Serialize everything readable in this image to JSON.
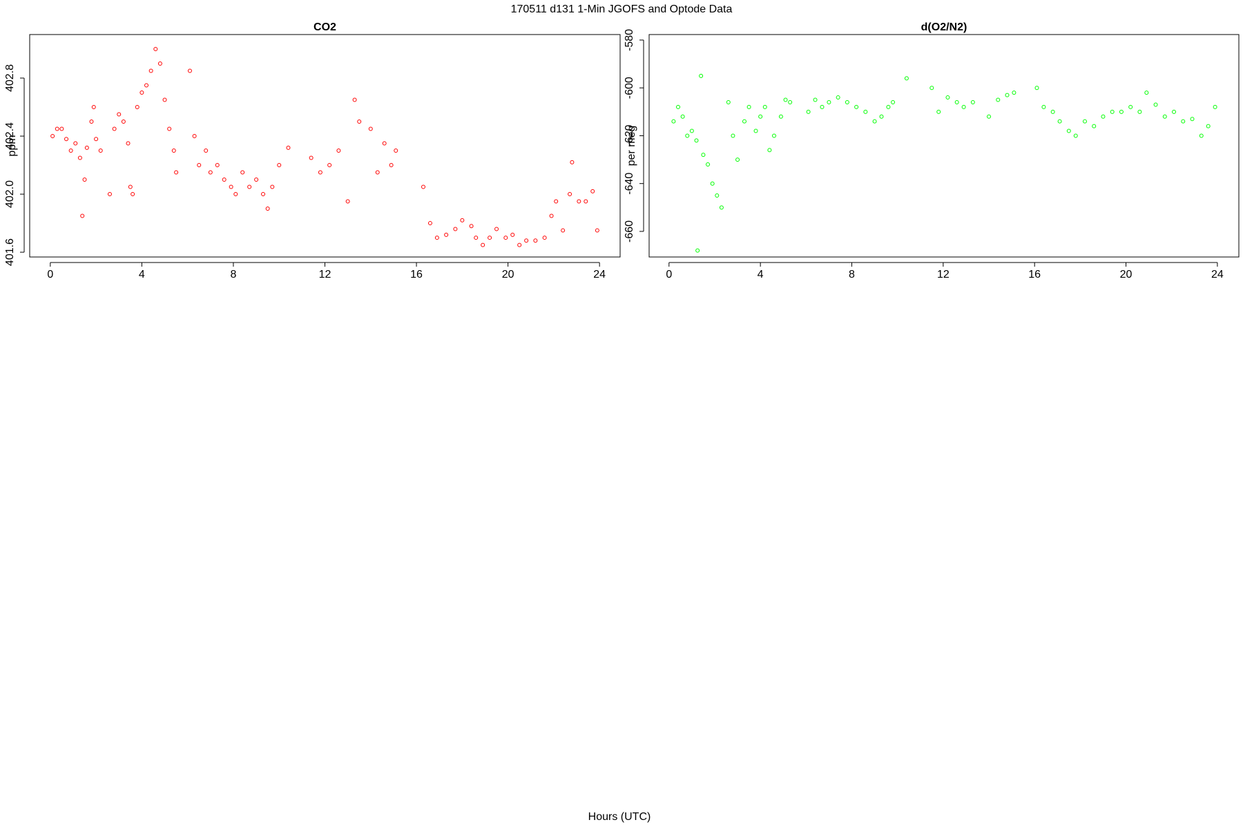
{
  "title": "170511   d131   1-Min  JGOFS and Optode Data",
  "x_label": "Hours (UTC)",
  "chart_data": [
    {
      "type": "scatter",
      "title": "CO2",
      "y_label": "ppm",
      "color": "#ff0000",
      "xlim": [
        -0.9,
        24.9
      ],
      "xticks": [
        0,
        4,
        8,
        12,
        16,
        20,
        24
      ],
      "ylim": [
        401.567,
        403.1
      ],
      "yticks": [
        401.6,
        {
          "value": 402,
          "label": "402.0"
        },
        402.4,
        402.8
      ],
      "x": [
        0.1,
        0.3,
        0.5,
        0.7,
        0.9,
        1.1,
        1.3,
        1.4,
        1.5,
        1.6,
        1.8,
        1.9,
        2.0,
        2.2,
        2.6,
        2.8,
        3.0,
        3.2,
        3.4,
        3.5,
        3.6,
        3.8,
        4.0,
        4.2,
        4.4,
        4.6,
        4.8,
        5.0,
        5.2,
        5.4,
        5.5,
        6.1,
        6.3,
        6.5,
        6.8,
        7.0,
        7.3,
        7.6,
        7.9,
        8.1,
        8.4,
        8.7,
        9.0,
        9.3,
        9.5,
        9.7,
        10.0,
        10.4,
        11.4,
        11.8,
        12.2,
        12.6,
        13.0,
        13.3,
        13.5,
        14.0,
        14.3,
        14.6,
        14.9,
        15.1,
        16.3,
        16.6,
        16.9,
        17.3,
        17.7,
        18.0,
        18.4,
        18.6,
        18.9,
        19.2,
        19.5,
        19.9,
        20.2,
        20.5,
        20.8,
        21.2,
        21.6,
        21.9,
        22.1,
        22.4,
        22.7,
        22.8,
        23.1,
        23.4,
        23.7,
        23.9
      ],
      "values": [
        402.4,
        402.45,
        402.45,
        402.38,
        402.3,
        402.35,
        402.25,
        401.85,
        402.1,
        402.32,
        402.5,
        402.6,
        402.38,
        402.3,
        402.0,
        402.45,
        402.55,
        402.5,
        402.35,
        402.05,
        402.0,
        402.6,
        402.7,
        402.75,
        402.85,
        403.0,
        402.9,
        402.65,
        402.45,
        402.3,
        402.15,
        402.85,
        402.4,
        402.2,
        402.3,
        402.15,
        402.2,
        402.1,
        402.05,
        402.0,
        402.15,
        402.05,
        402.1,
        402.0,
        401.9,
        402.05,
        402.2,
        402.32,
        402.25,
        402.15,
        402.2,
        402.3,
        401.95,
        402.65,
        402.5,
        402.45,
        402.15,
        402.35,
        402.2,
        402.3,
        402.05,
        401.8,
        401.7,
        401.72,
        401.76,
        401.82,
        401.78,
        401.7,
        401.65,
        401.7,
        401.76,
        401.7,
        401.72,
        401.65,
        401.68,
        401.68,
        401.7,
        401.85,
        401.95,
        401.75,
        402.0,
        402.22,
        401.95,
        401.95,
        402.02,
        401.75
      ]
    },
    {
      "type": "scatter",
      "title": "d(O2/N2)",
      "y_label": "per meg",
      "color": "#00ff00",
      "xlim": [
        -0.87,
        24.94
      ],
      "xticks": [
        0,
        4,
        8,
        12,
        16,
        20,
        24
      ],
      "ylim": [
        -670.7,
        -577.7
      ],
      "yticks": [
        -660,
        -640,
        -620,
        -600,
        -580
      ],
      "x": [
        0.2,
        0.4,
        0.6,
        0.8,
        1.0,
        1.2,
        1.25,
        1.4,
        1.5,
        1.7,
        1.9,
        2.1,
        2.3,
        2.6,
        2.8,
        3.0,
        3.3,
        3.5,
        3.8,
        4.0,
        4.2,
        4.4,
        4.6,
        4.9,
        5.1,
        5.3,
        6.1,
        6.4,
        6.7,
        7.0,
        7.4,
        7.8,
        8.2,
        8.6,
        9.0,
        9.3,
        9.6,
        9.8,
        10.4,
        11.5,
        11.8,
        12.2,
        12.6,
        12.9,
        13.3,
        14.0,
        14.4,
        14.8,
        15.1,
        16.1,
        16.4,
        16.8,
        17.1,
        17.5,
        17.8,
        18.2,
        18.6,
        19.0,
        19.4,
        19.8,
        20.2,
        20.6,
        20.9,
        21.3,
        21.7,
        22.1,
        22.5,
        22.9,
        23.3,
        23.6,
        23.9
      ],
      "values": [
        -614,
        -608,
        -612,
        -620,
        -618,
        -622,
        -668,
        -595,
        -628,
        -632,
        -640,
        -645,
        -650,
        -606,
        -620,
        -630,
        -614,
        -608,
        -618,
        -612,
        -608,
        -626,
        -620,
        -612,
        -605,
        -606,
        -610,
        -605,
        -608,
        -606,
        -604,
        -606,
        -608,
        -610,
        -614,
        -612,
        -608,
        -606,
        -596,
        -600,
        -610,
        -604,
        -606,
        -608,
        -606,
        -612,
        -605,
        -603,
        -602,
        -600,
        -608,
        -610,
        -614,
        -618,
        -620,
        -614,
        -616,
        -612,
        -610,
        -610,
        -608,
        -610,
        -602,
        -607,
        -612,
        -610,
        -614,
        -613,
        -620,
        -616,
        -608
      ]
    }
  ]
}
